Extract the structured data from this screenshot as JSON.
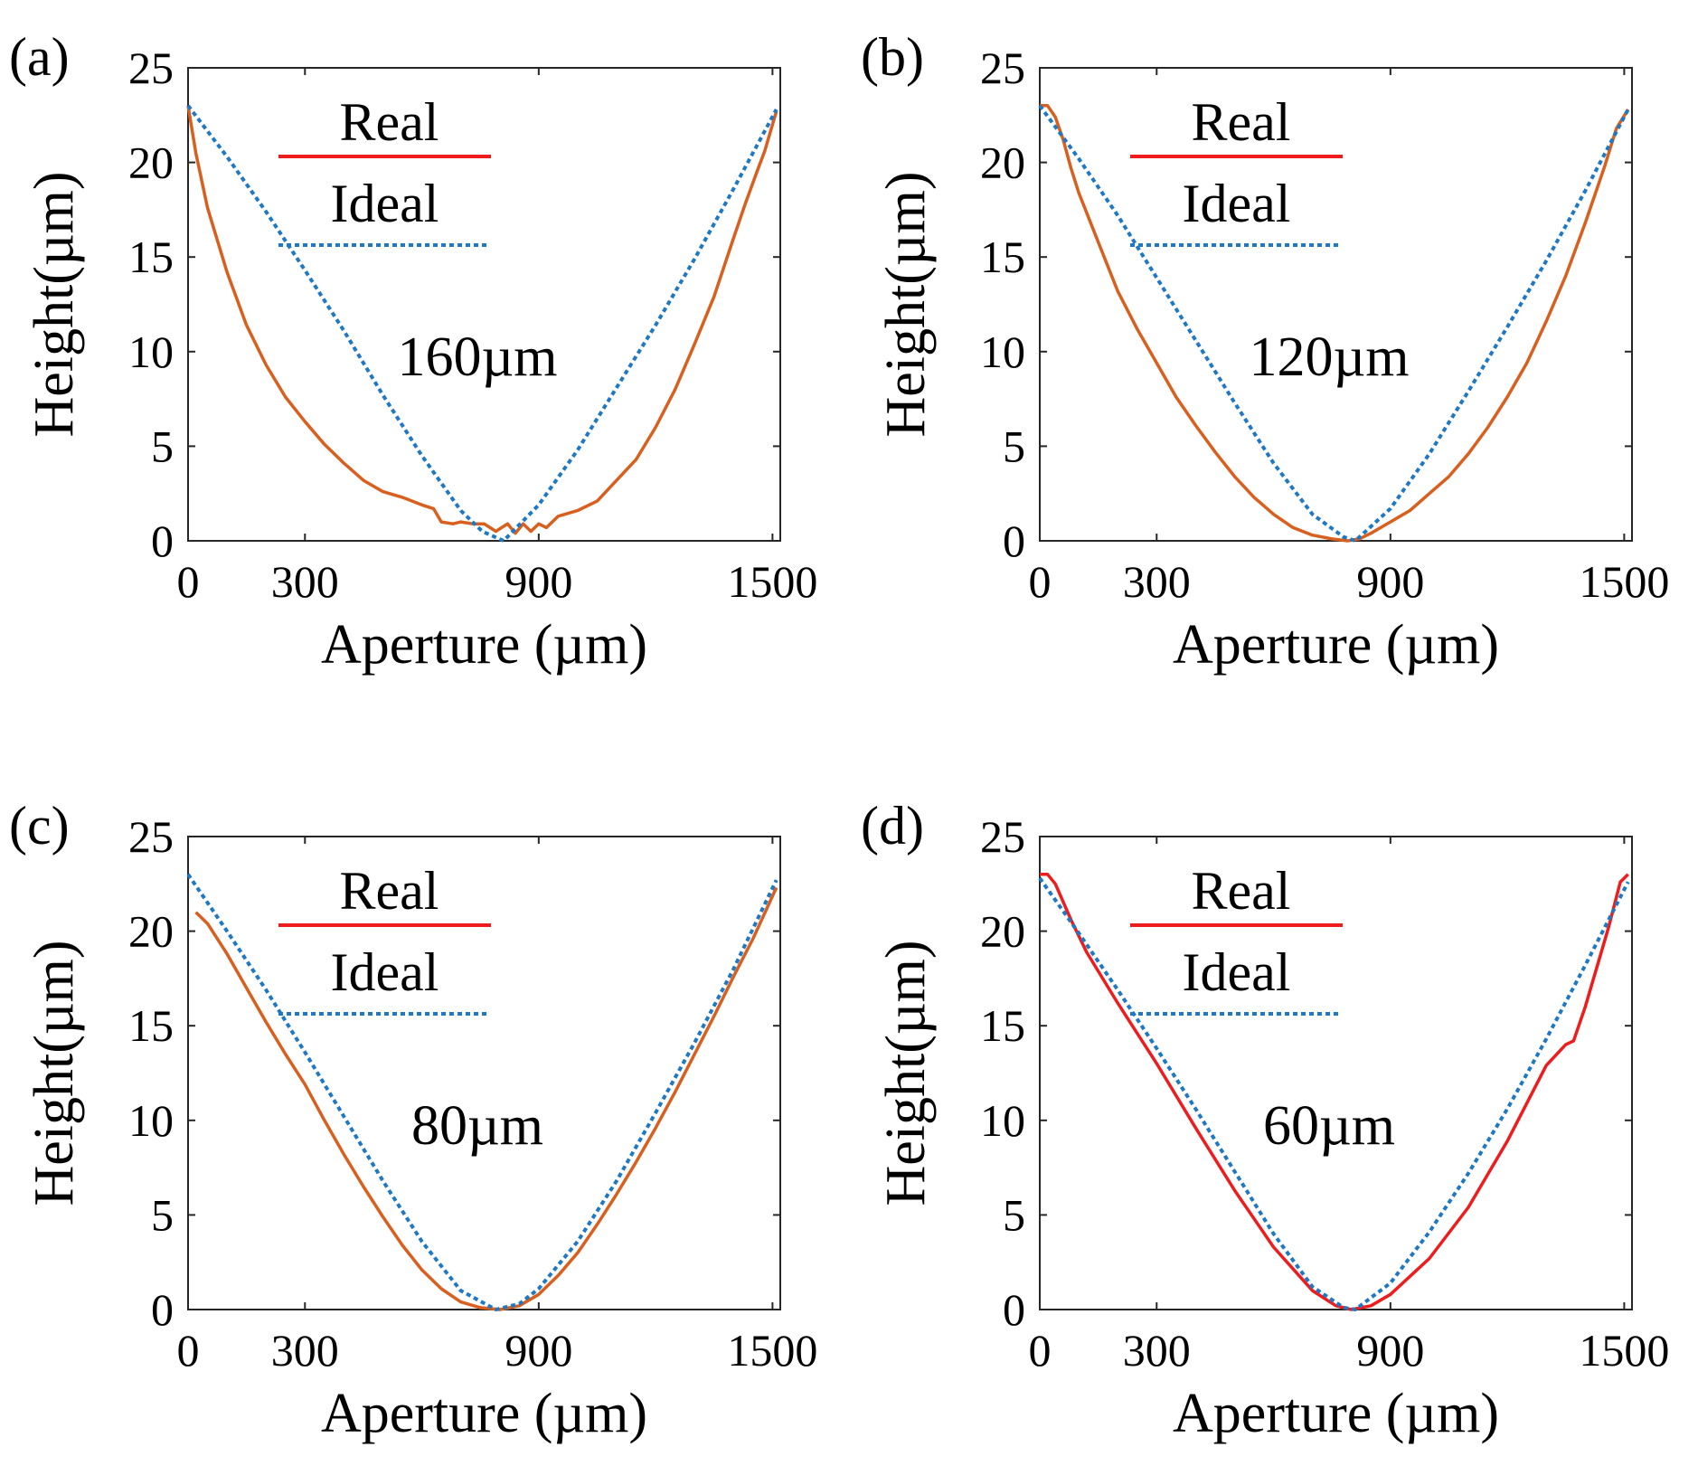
{
  "chart_data": [
    {
      "panel": "(a)",
      "type": "line",
      "xlabel": "Aperture (µm)",
      "ylabel": "Height(µm)",
      "xlim": [
        0,
        1520
      ],
      "ylim": [
        0,
        25
      ],
      "xticks": [
        "0",
        "300",
        "900",
        "1500"
      ],
      "yticks": [
        "0",
        "5",
        "10",
        "15",
        "20",
        "25"
      ],
      "annotation": "160µm",
      "legend": [
        "Real",
        "Ideal"
      ],
      "series": [
        {
          "name": "Real",
          "color": "#d95f1e",
          "style": "solid",
          "x": [
            0,
            20,
            50,
            100,
            150,
            200,
            250,
            300,
            350,
            400,
            450,
            500,
            550,
            600,
            630,
            650,
            680,
            700,
            730,
            760,
            790,
            820,
            840,
            860,
            880,
            900,
            920,
            950,
            1000,
            1050,
            1100,
            1150,
            1200,
            1250,
            1300,
            1350,
            1400,
            1430,
            1460,
            1480,
            1500,
            1510
          ],
          "y": [
            23,
            20.5,
            17.6,
            14.2,
            11.4,
            9.3,
            7.6,
            6.3,
            5.1,
            4.1,
            3.2,
            2.6,
            2.3,
            1.9,
            1.7,
            1.0,
            0.9,
            1.0,
            0.9,
            0.9,
            0.5,
            0.9,
            0.4,
            0.9,
            0.5,
            0.9,
            0.7,
            1.3,
            1.6,
            2.1,
            3.2,
            4.3,
            6.0,
            8.0,
            10.4,
            12.9,
            16.0,
            17.8,
            19.5,
            20.6,
            22.0,
            22.7
          ]
        },
        {
          "name": "Ideal",
          "color": "#1f78c4",
          "style": "dotted",
          "x": [
            0,
            100,
            200,
            300,
            400,
            500,
            600,
            700,
            755,
            810,
            900,
            1000,
            1100,
            1200,
            1300,
            1400,
            1510
          ],
          "y": [
            23,
            20.3,
            17.4,
            14.3,
            11.1,
            7.7,
            4.5,
            1.6,
            0.5,
            0,
            1.9,
            4.8,
            8.1,
            11.4,
            14.9,
            18.6,
            22.8
          ]
        }
      ]
    },
    {
      "panel": "(b)",
      "type": "line",
      "xlabel": "Aperture (µm)",
      "ylabel": "Height(µm)",
      "xlim": [
        0,
        1520
      ],
      "ylim": [
        0,
        25
      ],
      "xticks": [
        "0",
        "300",
        "900",
        "1500"
      ],
      "yticks": [
        "0",
        "5",
        "10",
        "15",
        "20",
        "25"
      ],
      "annotation": "120µm",
      "legend": [
        "Real",
        "Ideal"
      ],
      "series": [
        {
          "name": "Real",
          "color": "#d95f1e",
          "style": "solid",
          "x": [
            0,
            20,
            40,
            60,
            80,
            100,
            150,
            200,
            250,
            300,
            350,
            400,
            450,
            500,
            550,
            600,
            650,
            700,
            750,
            790,
            820,
            850,
            900,
            950,
            1000,
            1050,
            1100,
            1150,
            1200,
            1250,
            1300,
            1350,
            1400,
            1450,
            1480,
            1510
          ],
          "y": [
            23,
            23,
            22.4,
            21.2,
            19.7,
            18.4,
            15.8,
            13.2,
            11.2,
            9.4,
            7.6,
            6.1,
            4.7,
            3.4,
            2.3,
            1.4,
            0.7,
            0.3,
            0.1,
            0,
            0.1,
            0.4,
            1.0,
            1.6,
            2.5,
            3.4,
            4.6,
            6.0,
            7.6,
            9.4,
            11.6,
            14.0,
            16.8,
            19.8,
            21.8,
            22.8
          ]
        },
        {
          "name": "Ideal",
          "color": "#1f78c4",
          "style": "dotted",
          "x": [
            0,
            100,
            200,
            300,
            400,
            500,
            600,
            700,
            780,
            810,
            900,
            1000,
            1100,
            1200,
            1300,
            1400,
            1510
          ],
          "y": [
            23,
            20.2,
            17.2,
            13.9,
            10.6,
            7.3,
            4.1,
            1.4,
            0.2,
            0,
            1.7,
            4.6,
            7.9,
            11.3,
            14.8,
            18.5,
            22.8
          ]
        }
      ]
    },
    {
      "panel": "(c)",
      "type": "line",
      "xlabel": "Aperture (µm)",
      "ylabel": "Height(µm)",
      "xlim": [
        0,
        1520
      ],
      "ylim": [
        0,
        25
      ],
      "xticks": [
        "0",
        "300",
        "900",
        "1500"
      ],
      "yticks": [
        "0",
        "5",
        "10",
        "15",
        "20",
        "25"
      ],
      "annotation": "80µm",
      "legend": [
        "Real",
        "Ideal"
      ],
      "series": [
        {
          "name": "Real",
          "color": "#d95f1e",
          "style": "solid",
          "x": [
            20,
            50,
            100,
            150,
            200,
            250,
            300,
            350,
            400,
            450,
            500,
            550,
            600,
            650,
            700,
            750,
            800,
            850,
            900,
            950,
            1000,
            1050,
            1100,
            1150,
            1200,
            1250,
            1300,
            1350,
            1400,
            1450,
            1510
          ],
          "y": [
            21,
            20.4,
            18.8,
            17.0,
            15.2,
            13.5,
            11.9,
            10.0,
            8.2,
            6.5,
            4.9,
            3.4,
            2.1,
            1.1,
            0.4,
            0.1,
            0,
            0.2,
            0.8,
            1.8,
            3.0,
            4.5,
            6.1,
            7.8,
            9.6,
            11.5,
            13.5,
            15.5,
            17.6,
            19.6,
            22.3
          ]
        },
        {
          "name": "Ideal",
          "color": "#1f78c4",
          "style": "dotted",
          "x": [
            0,
            100,
            200,
            300,
            400,
            500,
            600,
            700,
            790,
            850,
            900,
            1000,
            1100,
            1200,
            1300,
            1400,
            1510
          ],
          "y": [
            23,
            20.0,
            16.9,
            13.6,
            10.2,
            6.8,
            3.6,
            1.0,
            0,
            0.3,
            1.1,
            3.6,
            6.8,
            10.4,
            14.1,
            18.0,
            22.7
          ]
        }
      ]
    },
    {
      "panel": "(d)",
      "type": "line",
      "xlabel": "Aperture (µm)",
      "ylabel": "Height(µm)",
      "xlim": [
        0,
        1520
      ],
      "ylim": [
        0,
        25
      ],
      "xticks": [
        "0",
        "300",
        "900",
        "1500"
      ],
      "yticks": [
        "0",
        "5",
        "10",
        "15",
        "20",
        "25"
      ],
      "annotation": "60µm",
      "legend": [
        "Real",
        "Ideal"
      ],
      "series": [
        {
          "name": "Real",
          "color": "#ee1c1c",
          "style": "solid",
          "x": [
            0,
            20,
            40,
            80,
            120,
            200,
            300,
            400,
            500,
            600,
            700,
            760,
            800,
            850,
            900,
            1000,
            1100,
            1200,
            1300,
            1350,
            1370,
            1400,
            1460,
            1490,
            1510
          ],
          "y": [
            23,
            23,
            22.5,
            20.6,
            18.9,
            16.2,
            13.0,
            9.6,
            6.3,
            3.3,
            1.0,
            0.2,
            0,
            0.2,
            0.8,
            2.7,
            5.4,
            8.9,
            12.9,
            14.0,
            14.2,
            16.0,
            20.2,
            22.6,
            23
          ]
        },
        {
          "name": "Ideal",
          "color": "#1f78c4",
          "style": "dotted",
          "x": [
            0,
            100,
            200,
            300,
            400,
            500,
            600,
            700,
            780,
            810,
            900,
            1000,
            1100,
            1200,
            1300,
            1400,
            1510
          ],
          "y": [
            22.8,
            19.9,
            16.9,
            13.8,
            10.6,
            7.3,
            4.0,
            1.2,
            0.1,
            0,
            1.4,
            4.1,
            7.2,
            10.6,
            14.3,
            18.2,
            22.6
          ]
        }
      ]
    }
  ]
}
